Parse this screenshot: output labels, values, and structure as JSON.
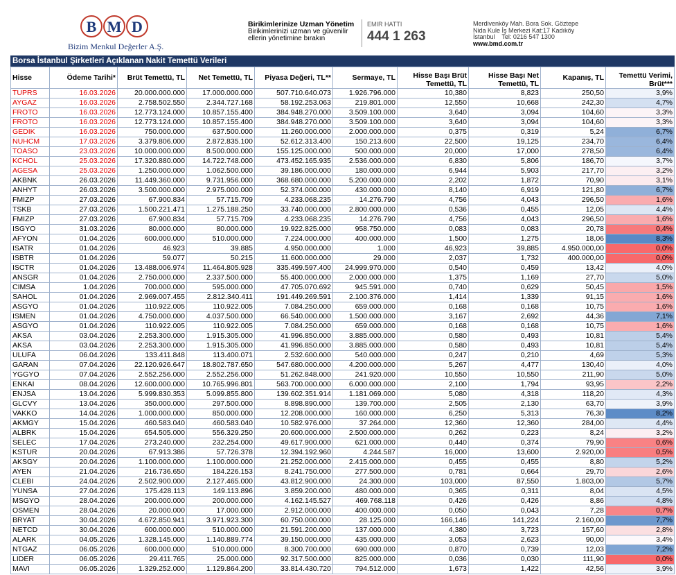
{
  "header": {
    "logo_letters": [
      "B",
      "M",
      "D"
    ],
    "company": "Bizim Menkul Değerler A.Ş.",
    "slogan_title": "Birikimlerinize Uzman Yönetim",
    "slogan_text": [
      "Birikimlerinizi uzman ve güvenilir",
      "ellerin yönetimine bırakın"
    ],
    "hotline_label": "EMIR HATTI",
    "hotline": "444 1 263",
    "address": [
      "Merdivenköy Mah. Bora Sok. Göztepe",
      "Nida Kule İş Merkezi Kat:17 Kadıköy",
      "İstanbul    Tel: 0216 547 1300"
    ],
    "website": "www.bmd.com.tr"
  },
  "table": {
    "title": "Borsa İstanbul Şirketleri Açıklanan Nakit Temettü Verileri",
    "columns": [
      "Hisse",
      "Ödeme Tarihi*",
      "Brüt Temettü, TL",
      "Net Temettü, TL",
      "Piyasa Değeri, TL**",
      "Sermaye, TL",
      "Hisse Başı Brüt Temettü, TL",
      "Hisse Başı Net Temettü, TL",
      "Kapanış, TL",
      "Temettü Verimi, Brüt***"
    ],
    "rows": [
      [
        "TUPRS",
        "16.03.2026",
        "20.000.000.000",
        "17.000.000.000",
        "507.710.640.073",
        "1.926.796.000",
        "10,380",
        "8,823",
        "250,50",
        "3,9%"
      ],
      [
        "AYGAZ",
        "16.03.2026",
        "2.758.502.550",
        "2.344.727.168",
        "58.192.253.063",
        "219.801.000",
        "12,550",
        "10,668",
        "242,30",
        "4,7%"
      ],
      [
        "FROTO",
        "16.03.2026",
        "12.773.124.000",
        "10.857.155.400",
        "384.948.270.000",
        "3.509.100.000",
        "3,640",
        "3,094",
        "104,60",
        "3,3%"
      ],
      [
        "FROTO",
        "16.03.2026",
        "12.773.124.000",
        "10.857.155.400",
        "384.948.270.000",
        "3.509.100.000",
        "3,640",
        "3,094",
        "104,60",
        "3,3%"
      ],
      [
        "GEDIK",
        "16.03.2026",
        "750.000.000",
        "637.500.000",
        "11.260.000.000",
        "2.000.000.000",
        "0,375",
        "0,319",
        "5,24",
        "6,7%"
      ],
      [
        "NUHCM",
        "17.03.2026",
        "3.379.806.000",
        "2.872.835.100",
        "52.612.313.400",
        "150.213.600",
        "22,500",
        "19,125",
        "234,70",
        "6,4%"
      ],
      [
        "TOASO",
        "23.03.2026",
        "10.000.000.000",
        "8.500.000.000",
        "155.125.000.000",
        "500.000.000",
        "20,000",
        "17,000",
        "278,50",
        "6,4%"
      ],
      [
        "KCHOL",
        "25.03.2026",
        "17.320.880.000",
        "14.722.748.000",
        "473.452.165.935",
        "2.536.000.000",
        "6,830",
        "5,806",
        "186,70",
        "3,7%"
      ],
      [
        "AGESA",
        "25.03.2026",
        "1.250.000.000",
        "1.062.500.000",
        "39.186.000.000",
        "180.000.000",
        "6,944",
        "5,903",
        "217,70",
        "3,2%"
      ],
      [
        "AKBNK",
        "26.03.2026",
        "11.449.360.000",
        "9.731.956.000",
        "368.680.000.000",
        "5.200.000.000",
        "2,202",
        "1,872",
        "70,90",
        "3,1%"
      ],
      [
        "ANHYT",
        "26.03.2026",
        "3.500.000.000",
        "2.975.000.000",
        "52.374.000.000",
        "430.000.000",
        "8,140",
        "6,919",
        "121,80",
        "6,7%"
      ],
      [
        "FMIZP",
        "27.03.2026",
        "67.900.834",
        "57.715.709",
        "4.233.068.235",
        "14.276.790",
        "4,756",
        "4,043",
        "296,50",
        "1,6%"
      ],
      [
        "TSKB",
        "27.03.2026",
        "1.500.221.471",
        "1.275.188.250",
        "33.740.000.000",
        "2.800.000.000",
        "0,536",
        "0,455",
        "12,05",
        "4,4%"
      ],
      [
        "FMIZP",
        "27.03.2026",
        "67.900.834",
        "57.715.709",
        "4.233.068.235",
        "14.276.790",
        "4,756",
        "4,043",
        "296,50",
        "1,6%"
      ],
      [
        "ISGYO",
        "31.03.2026",
        "80.000.000",
        "80.000.000",
        "19.922.825.000",
        "958.750.000",
        "0,083",
        "0,083",
        "20,78",
        "0,4%"
      ],
      [
        "AFYON",
        "01.04.2026",
        "600.000.000",
        "510.000.000",
        "7.224.000.000",
        "400.000.000",
        "1,500",
        "1,275",
        "18,06",
        "8,3%"
      ],
      [
        "ISATR",
        "01.04.2026",
        "46.923",
        "39.885",
        "4.950.000.000",
        "1.000",
        "46,923",
        "39,885",
        "4.950.000,00",
        "0,0%"
      ],
      [
        "ISBTR",
        "01.04.2026",
        "59.077",
        "50.215",
        "11.600.000.000",
        "29.000",
        "2,037",
        "1,732",
        "400.000,00",
        "0,0%"
      ],
      [
        "ISCTR",
        "01.04.2026",
        "13.488.006.974",
        "11.464.805.928",
        "335.499.597.400",
        "24.999.970.000",
        "0,540",
        "0,459",
        "13,42",
        "4,0%"
      ],
      [
        "ANSGR",
        "01.04.2026",
        "2.750.000.000",
        "2.337.500.000",
        "55.400.000.000",
        "2.000.000.000",
        "1,375",
        "1,169",
        "27,70",
        "5,0%"
      ],
      [
        "CIMSA",
        "1.04.2026",
        "700.000.000",
        "595.000.000",
        "47.705.070.692",
        "945.591.000",
        "0,740",
        "0,629",
        "50,45",
        "1,5%"
      ],
      [
        "SAHOL",
        "01.04.2026",
        "2.969.007.455",
        "2.812.340.411",
        "191.449.269.591",
        "2.100.376.000",
        "1,414",
        "1,339",
        "91,15",
        "1,6%"
      ],
      [
        "ASGYO",
        "01.04.2026",
        "110.922.005",
        "110.922.005",
        "7.084.250.000",
        "659.000.000",
        "0,168",
        "0,168",
        "10,75",
        "1,6%"
      ],
      [
        "ISMEN",
        "01.04.2026",
        "4.750.000.000",
        "4.037.500.000",
        "66.540.000.000",
        "1.500.000.000",
        "3,167",
        "2,692",
        "44,36",
        "7,1%"
      ],
      [
        "ASGYO",
        "01.04.2026",
        "110.922.005",
        "110.922.005",
        "7.084.250.000",
        "659.000.000",
        "0,168",
        "0,168",
        "10,75",
        "1,6%"
      ],
      [
        "AKSA",
        "03.04.2026",
        "2.253.300.000",
        "1.915.305.000",
        "41.996.850.000",
        "3.885.000.000",
        "0,580",
        "0,493",
        "10,81",
        "5,4%"
      ],
      [
        "AKSA",
        "03.04.2026",
        "2.253.300.000",
        "1.915.305.000",
        "41.996.850.000",
        "3.885.000.000",
        "0,580",
        "0,493",
        "10,81",
        "5,4%"
      ],
      [
        "ULUFA",
        "06.04.2026",
        "133.411.848",
        "113.400.071",
        "2.532.600.000",
        "540.000.000",
        "0,247",
        "0,210",
        "4,69",
        "5,3%"
      ],
      [
        "GARAN",
        "07.04.2026",
        "22.120.926.647",
        "18.802.787.650",
        "547.680.000.000",
        "4.200.000.000",
        "5,267",
        "4,477",
        "130,40",
        "4,0%"
      ],
      [
        "YGGYO",
        "07.04.2026",
        "2.552.256.000",
        "2.552.256.000",
        "51.262.848.000",
        "241.920.000",
        "10,550",
        "10,550",
        "211,90",
        "5,0%"
      ],
      [
        "ENKAI",
        "08.04.2026",
        "12.600.000.000",
        "10.765.996.801",
        "563.700.000.000",
        "6.000.000.000",
        "2,100",
        "1,794",
        "93,95",
        "2,2%"
      ],
      [
        "ENJSA",
        "13.04.2026",
        "5.999.830.353",
        "5.099.855.800",
        "139.602.351.914",
        "1.181.069.000",
        "5,080",
        "4,318",
        "118,20",
        "4,3%"
      ],
      [
        "GLCVY",
        "13.04.2026",
        "350.000.000",
        "297.500.000",
        "8.898.890.000",
        "139.700.000",
        "2,505",
        "2,130",
        "63,70",
        "3,9%"
      ],
      [
        "VAKKO",
        "14.04.2026",
        "1.000.000.000",
        "850.000.000",
        "12.208.000.000",
        "160.000.000",
        "6,250",
        "5,313",
        "76,30",
        "8,2%"
      ],
      [
        "AKMGY",
        "15.04.2026",
        "460.583.040",
        "460.583.040",
        "10.582.976.000",
        "37.264.000",
        "12,360",
        "12,360",
        "284,00",
        "4,4%"
      ],
      [
        "ALBRK",
        "15.04.2026",
        "654.505.000",
        "556.329.250",
        "20.600.000.000",
        "2.500.000.000",
        "0,262",
        "0,223",
        "8,24",
        "3,2%"
      ],
      [
        "SELEC",
        "17.04.2026",
        "273.240.000",
        "232.254.000",
        "49.617.900.000",
        "621.000.000",
        "0,440",
        "0,374",
        "79,90",
        "0,6%"
      ],
      [
        "KSTUR",
        "20.04.2026",
        "67.913.386",
        "57.726.378",
        "12.394.192.960",
        "4.244.587",
        "16,000",
        "13,600",
        "2.920,00",
        "0,5%"
      ],
      [
        "AKSGY",
        "20.04.2026",
        "1.100.000.000",
        "1.100.000.000",
        "21.252.000.000",
        "2.415.000.000",
        "0,455",
        "0,455",
        "8,80",
        "5,2%"
      ],
      [
        "AYEN",
        "21.04.2026",
        "216.736.650",
        "184.226.153",
        "8.241.750.000",
        "277.500.000",
        "0,781",
        "0,664",
        "29,70",
        "2,6%"
      ],
      [
        "CLEBI",
        "24.04.2026",
        "2.502.900.000",
        "2.127.465.000",
        "43.812.900.000",
        "24.300.000",
        "103,000",
        "87,550",
        "1.803,00",
        "5,7%"
      ],
      [
        "YUNSA",
        "27.04.2026",
        "175.428.113",
        "149.113.896",
        "3.859.200.000",
        "480.000.000",
        "0,365",
        "0,311",
        "8,04",
        "4,5%"
      ],
      [
        "MSGYO",
        "28.04.2026",
        "200.000.000",
        "200.000.000",
        "4.162.145.527",
        "469.768.118",
        "0,426",
        "0,426",
        "8,86",
        "4,8%"
      ],
      [
        "OSMEN",
        "28.04.2026",
        "20.000.000",
        "17.000.000",
        "2.912.000.000",
        "400.000.000",
        "0,050",
        "0,043",
        "7,28",
        "0,7%"
      ],
      [
        "BRYAT",
        "30.04.2026",
        "4.672.850.941",
        "3.971.923.300",
        "60.750.000.000",
        "28.125.000",
        "166,146",
        "141,224",
        "2.160,00",
        "7,7%"
      ],
      [
        "NETCD",
        "30.04.2026",
        "600.000.000",
        "510.000.000",
        "21.591.200.000",
        "137.000.000",
        "4,380",
        "3,723",
        "157,60",
        "2,8%"
      ],
      [
        "ALARK",
        "04.05.2026",
        "1.328.145.000",
        "1.140.889.774",
        "39.150.000.000",
        "435.000.000",
        "3,053",
        "2,623",
        "90,00",
        "3,4%"
      ],
      [
        "NTGAZ",
        "06.05.2026",
        "600.000.000",
        "510.000.000",
        "8.300.700.000",
        "690.000.000",
        "0,870",
        "0,739",
        "12,03",
        "7,2%"
      ],
      [
        "LIDER",
        "06.05.2026",
        "29.411.765",
        "25.000.000",
        "92.317.500.000",
        "825.000.000",
        "0,036",
        "0,030",
        "111,90",
        "0,0%"
      ],
      [
        "MAVI",
        "06.05.2026",
        "1.329.252.000",
        "1.129.864.200",
        "33.814.430.720",
        "794.512.000",
        "1,673",
        "1,422",
        "42,56",
        "3,9%"
      ]
    ]
  }
}
